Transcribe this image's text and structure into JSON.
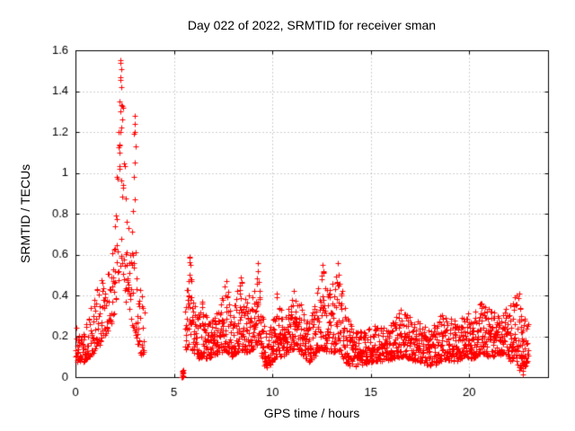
{
  "chart_data": {
    "type": "scatter",
    "title": "Day 022 of 2022, SRMTID for receiver sman",
    "xlabel": "GPS time / hours",
    "ylabel": "SRMTID / TECUs",
    "xlim": [
      0,
      24
    ],
    "ylim": [
      0,
      1.6
    ],
    "xtick_values": [
      0,
      5,
      10,
      15,
      20
    ],
    "xtick_labels": [
      "0",
      "5",
      "10",
      "15",
      "20"
    ],
    "ytick_values": [
      0,
      0.2,
      0.4,
      0.6,
      0.8,
      1.0,
      1.2,
      1.4,
      1.6
    ],
    "ytick_labels": [
      "0",
      "0.2",
      "0.4",
      "0.6",
      "0.8",
      "1",
      "1.2",
      "1.4",
      "1.6"
    ],
    "grid": true,
    "grid_color": "#9e9e9e",
    "axis_color": "#000000",
    "marker": {
      "shape": "plus",
      "size": 7,
      "color": "#ff0000"
    },
    "series_name": "SRMTID",
    "seed": 20220122,
    "noise_power": 1.6,
    "segments": [
      {
        "t0": 0.0,
        "t1": 3.5,
        "rate": 78
      },
      {
        "t0": 5.55,
        "t1": 23.0,
        "rate": 105
      }
    ],
    "envelope": [
      [
        0.0,
        0.07,
        0.25
      ],
      [
        0.3,
        0.06,
        0.22
      ],
      [
        0.6,
        0.09,
        0.28
      ],
      [
        0.9,
        0.12,
        0.38
      ],
      [
        1.2,
        0.15,
        0.46
      ],
      [
        1.5,
        0.2,
        0.5
      ],
      [
        1.8,
        0.26,
        0.56
      ],
      [
        2.0,
        0.32,
        0.72
      ],
      [
        2.15,
        0.42,
        1.15
      ],
      [
        2.3,
        0.55,
        1.56
      ],
      [
        2.45,
        0.42,
        1.3
      ],
      [
        2.6,
        0.33,
        0.82
      ],
      [
        2.8,
        0.27,
        0.66
      ],
      [
        2.95,
        0.24,
        1.08
      ],
      [
        3.05,
        0.2,
        1.28
      ],
      [
        3.15,
        0.13,
        0.62
      ],
      [
        3.3,
        0.1,
        0.45
      ],
      [
        3.5,
        0.12,
        0.38
      ],
      [
        5.55,
        0.12,
        0.3
      ],
      [
        5.8,
        0.16,
        0.6
      ],
      [
        6.0,
        0.12,
        0.38
      ],
      [
        6.2,
        0.09,
        0.3
      ],
      [
        6.45,
        0.1,
        0.38
      ],
      [
        6.7,
        0.09,
        0.28
      ],
      [
        7.0,
        0.1,
        0.3
      ],
      [
        7.3,
        0.12,
        0.34
      ],
      [
        7.65,
        0.13,
        0.48
      ],
      [
        7.9,
        0.1,
        0.32
      ],
      [
        8.2,
        0.12,
        0.44
      ],
      [
        8.4,
        0.13,
        0.5
      ],
      [
        8.65,
        0.12,
        0.38
      ],
      [
        8.9,
        0.13,
        0.46
      ],
      [
        9.1,
        0.15,
        0.42
      ],
      [
        9.25,
        0.16,
        0.57
      ],
      [
        9.45,
        0.1,
        0.33
      ],
      [
        9.65,
        0.05,
        0.22
      ],
      [
        9.9,
        0.06,
        0.25
      ],
      [
        10.2,
        0.1,
        0.42
      ],
      [
        10.5,
        0.1,
        0.31
      ],
      [
        10.8,
        0.12,
        0.36
      ],
      [
        11.1,
        0.14,
        0.43
      ],
      [
        11.4,
        0.12,
        0.38
      ],
      [
        11.7,
        0.09,
        0.32
      ],
      [
        11.95,
        0.07,
        0.29
      ],
      [
        12.2,
        0.11,
        0.38
      ],
      [
        12.55,
        0.14,
        0.54
      ],
      [
        12.8,
        0.12,
        0.44
      ],
      [
        13.05,
        0.12,
        0.46
      ],
      [
        13.35,
        0.13,
        0.56
      ],
      [
        13.6,
        0.09,
        0.42
      ],
      [
        13.85,
        0.06,
        0.3
      ],
      [
        14.15,
        0.05,
        0.22
      ],
      [
        14.5,
        0.06,
        0.23
      ],
      [
        14.9,
        0.07,
        0.24
      ],
      [
        15.3,
        0.08,
        0.26
      ],
      [
        15.7,
        0.08,
        0.24
      ],
      [
        16.1,
        0.09,
        0.28
      ],
      [
        16.5,
        0.1,
        0.33
      ],
      [
        16.9,
        0.09,
        0.31
      ],
      [
        17.3,
        0.08,
        0.28
      ],
      [
        17.7,
        0.07,
        0.26
      ],
      [
        18.05,
        0.05,
        0.23
      ],
      [
        18.4,
        0.07,
        0.29
      ],
      [
        18.7,
        0.09,
        0.33
      ],
      [
        19.05,
        0.08,
        0.29
      ],
      [
        19.4,
        0.08,
        0.27
      ],
      [
        19.8,
        0.1,
        0.32
      ],
      [
        20.2,
        0.09,
        0.3
      ],
      [
        20.6,
        0.12,
        0.37
      ],
      [
        21.0,
        0.1,
        0.34
      ],
      [
        21.4,
        0.1,
        0.31
      ],
      [
        21.8,
        0.12,
        0.36
      ],
      [
        22.1,
        0.08,
        0.35
      ],
      [
        22.35,
        0.1,
        0.4
      ],
      [
        22.55,
        0.03,
        0.42
      ],
      [
        22.75,
        0.04,
        0.34
      ],
      [
        23.0,
        0.08,
        0.26
      ]
    ],
    "feature_points": [
      [
        2.27,
        1.55
      ],
      [
        2.3,
        1.54
      ],
      [
        2.29,
        1.47
      ],
      [
        2.31,
        1.42
      ],
      [
        2.25,
        1.35
      ],
      [
        2.33,
        1.33
      ],
      [
        2.28,
        1.3
      ],
      [
        2.35,
        1.26
      ],
      [
        2.32,
        1.22
      ],
      [
        2.22,
        1.1
      ],
      [
        2.24,
        1.02
      ],
      [
        3.0,
        1.28
      ],
      [
        3.03,
        1.24
      ],
      [
        2.98,
        1.19
      ],
      [
        3.05,
        1.13
      ],
      [
        3.01,
        1.05
      ],
      [
        2.96,
        0.98
      ],
      [
        5.8,
        0.59
      ],
      [
        5.82,
        0.55
      ],
      [
        5.78,
        0.5
      ],
      [
        9.24,
        0.56
      ],
      [
        9.27,
        0.52
      ],
      [
        9.6,
        0.055
      ],
      [
        9.7,
        0.05
      ],
      [
        12.55,
        0.55
      ],
      [
        12.58,
        0.51
      ],
      [
        12.52,
        0.48
      ],
      [
        13.33,
        0.56
      ],
      [
        13.36,
        0.5
      ],
      [
        13.3,
        0.46
      ],
      [
        8.4,
        0.49
      ],
      [
        8.35,
        0.45
      ],
      [
        7.65,
        0.47
      ],
      [
        10.2,
        0.41
      ],
      [
        11.1,
        0.42
      ],
      [
        16.5,
        0.33
      ],
      [
        20.6,
        0.36
      ],
      [
        22.4,
        0.4
      ],
      [
        22.55,
        0.41
      ],
      [
        22.6,
        0.34
      ],
      [
        22.62,
        0.28
      ],
      [
        22.64,
        0.22
      ],
      [
        22.66,
        0.16
      ],
      [
        22.68,
        0.1
      ],
      [
        22.7,
        0.06
      ],
      [
        22.72,
        0.03
      ],
      [
        22.74,
        0.015
      ]
    ],
    "isolated_points": [
      [
        5.4,
        0.0
      ],
      [
        5.44,
        0.018
      ],
      [
        5.48,
        0.005
      ],
      [
        5.42,
        0.03
      ],
      [
        5.46,
        0.033
      ],
      [
        5.43,
        0.01
      ],
      [
        5.47,
        0.02
      ],
      [
        5.41,
        0.025
      ],
      [
        5.45,
        0.0
      ]
    ]
  }
}
